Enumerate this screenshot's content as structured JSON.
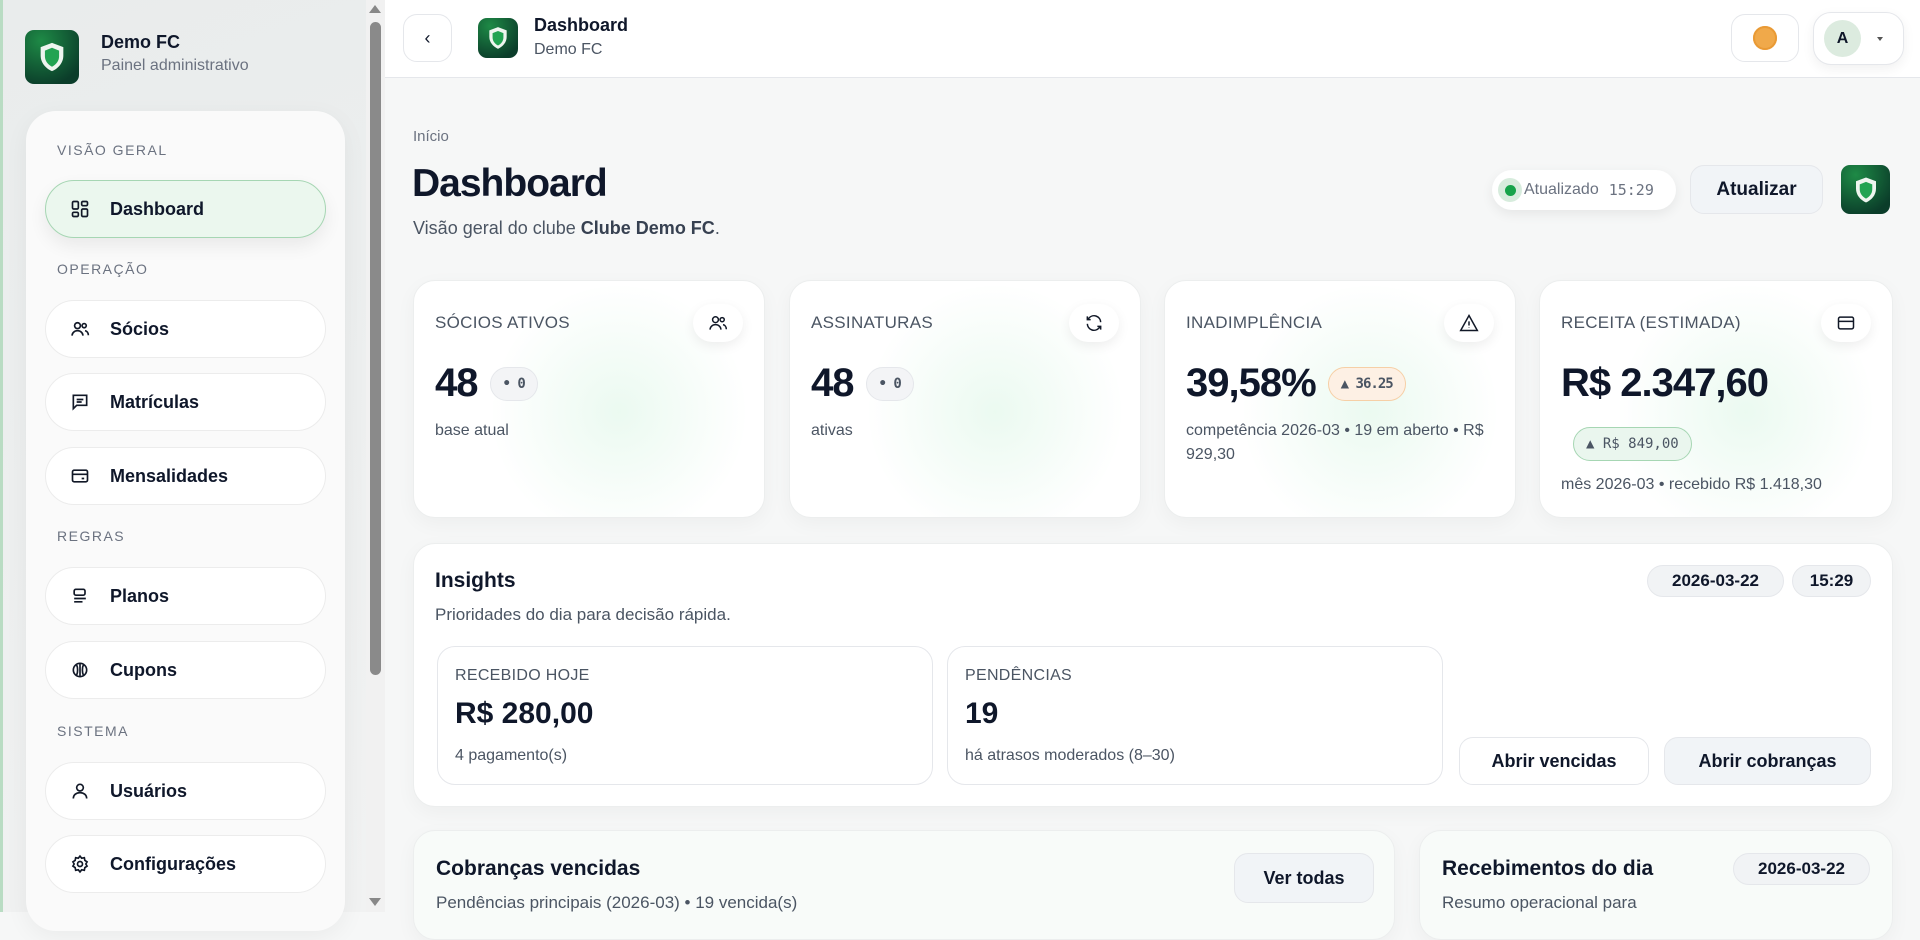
{
  "sidebar": {
    "brand_title": "Demo FC",
    "brand_subtitle": "Painel administrativo",
    "sections": [
      "VISÃO GERAL",
      "OPERAÇÃO",
      "REGRAS",
      "SISTEMA"
    ],
    "items": [
      {
        "label": "Dashboard",
        "icon": "grid-icon",
        "active": true
      },
      {
        "label": "Sócios",
        "icon": "users-icon"
      },
      {
        "label": "Matrículas",
        "icon": "message-icon"
      },
      {
        "label": "Mensalidades",
        "icon": "wallet-icon"
      },
      {
        "label": "Planos",
        "icon": "stack-icon"
      },
      {
        "label": "Cupons",
        "icon": "coupon-icon"
      },
      {
        "label": "Usuários",
        "icon": "user-icon"
      },
      {
        "label": "Configurações",
        "icon": "gear-icon"
      }
    ]
  },
  "header": {
    "title": "Dashboard",
    "subtitle": "Demo FC",
    "avatar_letter": "A"
  },
  "page": {
    "breadcrumb": "Início",
    "title": "Dashboard",
    "subtitle_prefix": "Visão geral do clube ",
    "club_name": "Clube Demo FC",
    "subtitle_suffix": ".",
    "status_label": "Atualizado",
    "status_time": "15:29",
    "refresh_label": "Atualizar"
  },
  "kpis": [
    {
      "label": "SÓCIOS ATIVOS",
      "value": "48",
      "delta": "• 0",
      "sub": "base atual",
      "icon": "users-icon"
    },
    {
      "label": "ASSINATURAS",
      "value": "48",
      "delta": "• 0",
      "sub": "ativas",
      "icon": "refresh-icon"
    },
    {
      "label": "INADIMPLÊNCIA",
      "value": "39,58%",
      "delta": "▲ 36.25",
      "sub": "competência 2026-03 • 19 em aberto • R$ 929,30",
      "icon": "warning-icon"
    },
    {
      "label": "RECEITA (ESTIMADA)",
      "value": "R$ 2.347,60",
      "delta": "▲ R$ 849,00",
      "sub": "mês 2026-03 • recebido R$ 1.418,30",
      "icon": "credit-card-icon"
    }
  ],
  "insights": {
    "title": "Insights",
    "subtitle": "Prioridades do dia para decisão rápida.",
    "date": "2026-03-22",
    "time": "15:29",
    "cards": [
      {
        "label": "RECEBIDO HOJE",
        "value": "R$ 280,00",
        "sub": "4 pagamento(s)"
      },
      {
        "label": "PENDÊNCIAS",
        "value": "19",
        "sub": "há atrasos moderados (8–30)"
      }
    ],
    "buttons": [
      "Abrir vencidas",
      "Abrir cobranças"
    ]
  },
  "overdue": {
    "title": "Cobranças vencidas",
    "subtitle": "Pendências principais (2026-03) • 19 vencida(s)",
    "button": "Ver todas"
  },
  "receipts": {
    "title": "Recebimentos do dia",
    "date": "2026-03-22",
    "subtitle": "Resumo operacional para"
  },
  "colors": {
    "accent": "#16a34a",
    "warning": "#c2410c",
    "active_bg": "#ebf7ee"
  }
}
